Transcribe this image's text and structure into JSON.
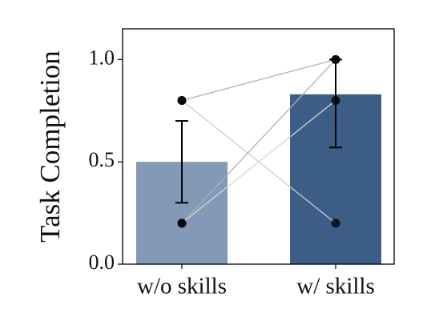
{
  "chart_data": {
    "type": "bar",
    "ylabel": "Task Completion",
    "categories": [
      "w/o skills",
      "w/ skills"
    ],
    "values": [
      0.5,
      0.83
    ],
    "colors": [
      "#8299b8",
      "#3c5d86"
    ],
    "error_ranges": [
      [
        0.3,
        0.7
      ],
      [
        0.57,
        1.0
      ]
    ],
    "paired_points": [
      [
        0.8,
        1.0
      ],
      [
        0.8,
        0.2
      ],
      [
        0.2,
        1.0
      ],
      [
        0.2,
        0.8
      ]
    ],
    "ylim": [
      0,
      1.15
    ],
    "yticks": [
      {
        "value": 0,
        "label": "0.0"
      },
      0.5,
      {
        "value": 1,
        "label": "1.0"
      }
    ]
  }
}
